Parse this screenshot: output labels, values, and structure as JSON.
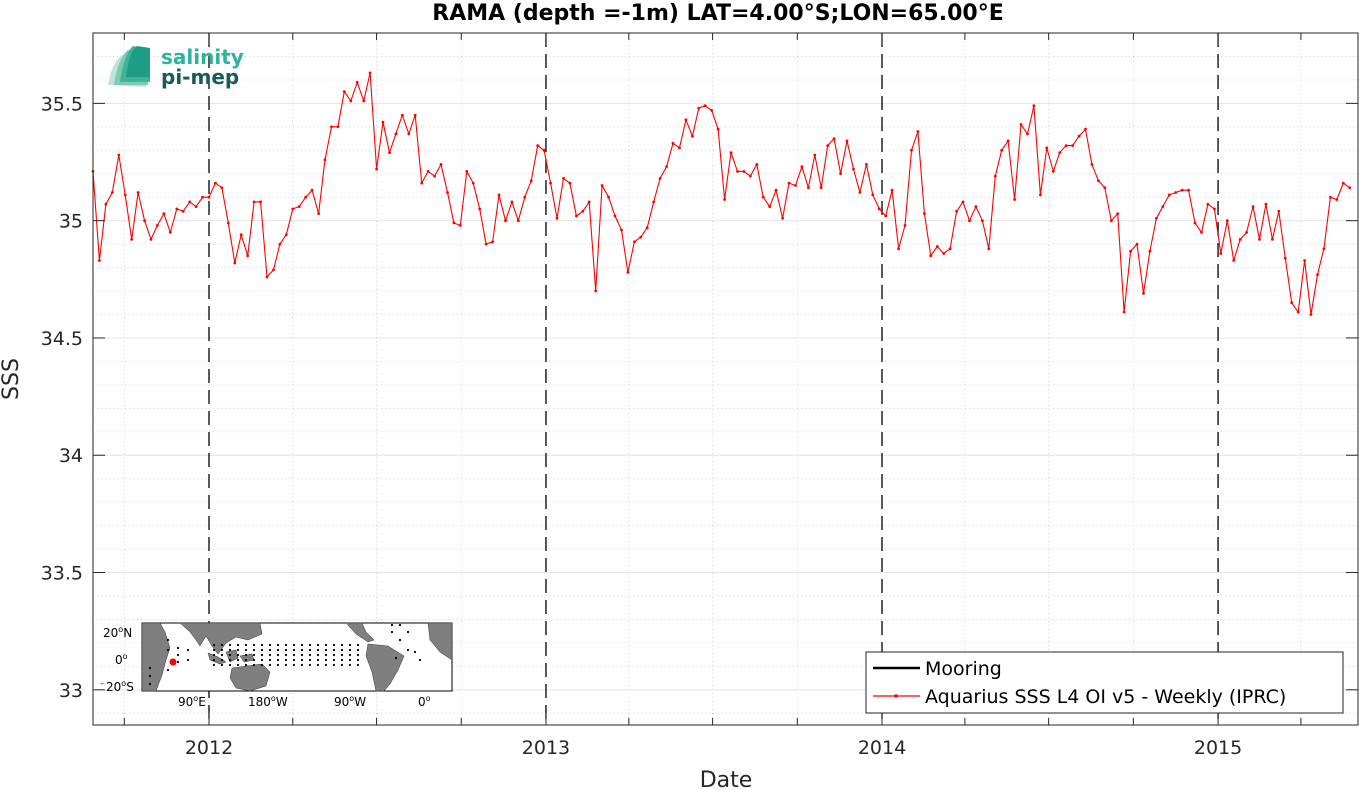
{
  "chart_data": {
    "type": "line",
    "title": "RAMA (depth =-1m) LAT=4.00°S;LON=65.00°E",
    "xlabel": "Date",
    "ylabel": "SSS",
    "x_range": [
      "2011-08-28",
      "2015-06-02"
    ],
    "ylim": [
      32.85,
      35.8
    ],
    "yticks": [
      33,
      33.5,
      34,
      34.5,
      35,
      35.5
    ],
    "ytick_labels": [
      "33",
      "33.5",
      "34",
      "34.5",
      "35",
      "35.5"
    ],
    "xticks": [
      "2012-01-01",
      "2013-01-01",
      "2014-01-01",
      "2015-01-01"
    ],
    "xtick_labels": [
      "2012",
      "2013",
      "2014",
      "2015"
    ],
    "vlines": [
      "2012-01-01",
      "2013-01-01",
      "2014-01-01",
      "2015-01-01"
    ],
    "grid": true,
    "legend_position": "bottom-right",
    "series": [
      {
        "name": "Mooring",
        "color": "#000000",
        "marker": "none",
        "values": []
      },
      {
        "name": "Aquarius SSS L4 OI v5 - Weekly (IPRC)",
        "color": "#ff0000",
        "marker": "dot",
        "start": "2011-08-28",
        "step_days": 7,
        "values": [
          35.21,
          34.83,
          35.07,
          35.12,
          35.28,
          35.11,
          34.92,
          35.12,
          35.0,
          34.92,
          34.98,
          35.03,
          34.95,
          35.05,
          35.04,
          35.08,
          35.06,
          35.1,
          35.1,
          35.16,
          35.14,
          34.99,
          34.82,
          34.94,
          34.85,
          35.08,
          35.08,
          34.76,
          34.79,
          34.9,
          34.94,
          35.05,
          35.06,
          35.1,
          35.13,
          35.03,
          35.26,
          35.4,
          35.4,
          35.55,
          35.51,
          35.59,
          35.51,
          35.63,
          35.22,
          35.42,
          35.29,
          35.37,
          35.45,
          35.37,
          35.45,
          35.16,
          35.21,
          35.19,
          35.24,
          35.12,
          34.99,
          34.98,
          35.21,
          35.16,
          35.05,
          34.9,
          34.91,
          35.11,
          35.0,
          35.08,
          35.0,
          35.1,
          35.17,
          35.32,
          35.3,
          35.16,
          35.01,
          35.18,
          35.16,
          35.02,
          35.04,
          35.08,
          34.7,
          35.15,
          35.1,
          35.02,
          34.96,
          34.78,
          34.91,
          34.93,
          34.97,
          35.08,
          35.18,
          35.23,
          35.33,
          35.31,
          35.43,
          35.36,
          35.48,
          35.49,
          35.47,
          35.39,
          35.09,
          35.29,
          35.21,
          35.21,
          35.19,
          35.24,
          35.1,
          35.06,
          35.13,
          35.01,
          35.16,
          35.15,
          35.23,
          35.14,
          35.28,
          35.14,
          35.32,
          35.35,
          35.2,
          35.34,
          35.22,
          35.12,
          35.24,
          35.11,
          35.05,
          35.02,
          35.13,
          34.88,
          34.98,
          35.3,
          35.38,
          35.03,
          34.85,
          34.89,
          34.86,
          34.88,
          35.04,
          35.08,
          35.0,
          35.06,
          35.0,
          34.88,
          35.19,
          35.3,
          35.34,
          35.09,
          35.41,
          35.37,
          35.49,
          35.11,
          35.31,
          35.21,
          35.29,
          35.32,
          35.32,
          35.36,
          35.39,
          35.24,
          35.17,
          35.14,
          35.0,
          35.03,
          34.61,
          34.87,
          34.9,
          34.69,
          34.87,
          35.01,
          35.06,
          35.11,
          35.12,
          35.13,
          35.13,
          34.99,
          34.95,
          35.07,
          35.05,
          34.86,
          35.0,
          34.83,
          34.92,
          34.95,
          35.06,
          34.92,
          35.07,
          34.92,
          35.04,
          34.84,
          34.65,
          34.61,
          34.83,
          34.6,
          34.77,
          34.88,
          35.1,
          35.09,
          35.16,
          35.14
        ]
      }
    ]
  },
  "logo": {
    "line1": "salinity",
    "line2": "pi-mep"
  },
  "inset_map": {
    "lat_labels": [
      "20",
      "0",
      "20"
    ],
    "lat_suffix": [
      "N",
      "",
      "S"
    ],
    "lon_labels": [
      "90",
      "180",
      "90",
      "0"
    ],
    "lon_suffix": [
      "E",
      "W",
      "W",
      ""
    ],
    "degree_mark": "o",
    "land_color": "#7f7f7f",
    "marker_color": "#ff0000"
  }
}
